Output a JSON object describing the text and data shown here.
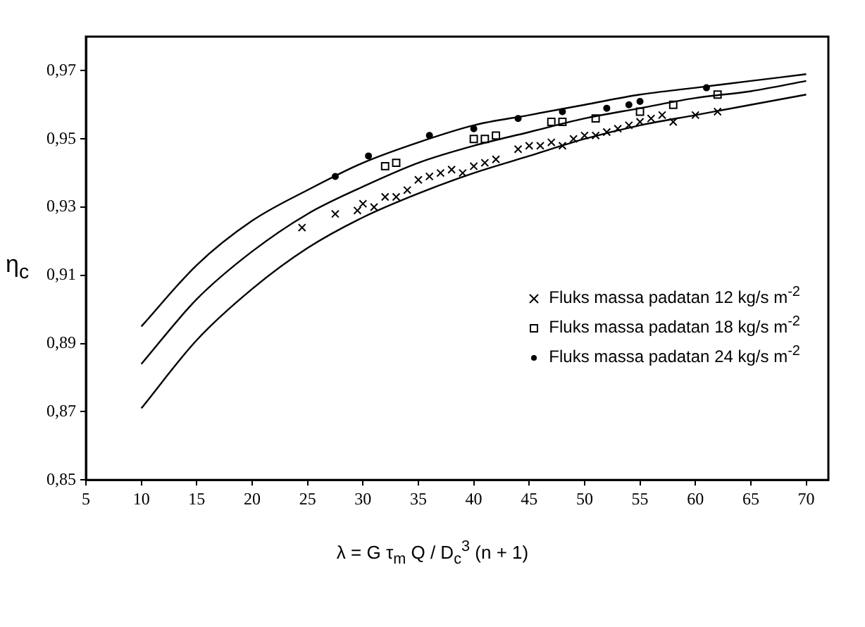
{
  "chart_data": {
    "type": "scatter",
    "xlabel": "λ = G τ$_{m}$ Q / D$_{c}$$^{3}$ (n + 1)",
    "ylabel": "η$_{c}$",
    "xlim": [
      5,
      72
    ],
    "xticks": [
      5,
      10,
      15,
      20,
      25,
      30,
      35,
      40,
      45,
      50,
      55,
      60,
      65,
      70
    ],
    "ylim": [
      0.85,
      0.98
    ],
    "yticks": [
      {
        "value": 0.85,
        "label": "0,85"
      },
      {
        "value": 0.87,
        "label": "0,87"
      },
      {
        "value": 0.89,
        "label": "0,89"
      },
      {
        "value": 0.91,
        "label": "0,91"
      },
      {
        "value": 0.93,
        "label": "0,93"
      },
      {
        "value": 0.95,
        "label": "0,95"
      },
      {
        "value": 0.97,
        "label": "0,97"
      }
    ],
    "grid": false,
    "legend": "right",
    "series": [
      {
        "name": "Fluks massa padatan 12 kg/s m$^{-2}$",
        "color": "#000000",
        "marker": "cross",
        "x": [
          24.5,
          27.5,
          29.5,
          30,
          31,
          32,
          33,
          34,
          35,
          36,
          37,
          38,
          39,
          40,
          41,
          42,
          44,
          45,
          46,
          47,
          48,
          49,
          50,
          51,
          52,
          53,
          54,
          55,
          56,
          57,
          58,
          60,
          62
        ],
        "values": [
          0.924,
          0.928,
          0.929,
          0.931,
          0.93,
          0.933,
          0.933,
          0.935,
          0.938,
          0.939,
          0.94,
          0.941,
          0.94,
          0.942,
          0.943,
          0.944,
          0.947,
          0.948,
          0.948,
          0.949,
          0.948,
          0.95,
          0.951,
          0.951,
          0.952,
          0.953,
          0.954,
          0.955,
          0.956,
          0.957,
          0.955,
          0.957,
          0.958
        ]
      },
      {
        "name": "Fluks massa padatan 18 kg/s m$^{-2}$",
        "color": "#000000",
        "marker": "square",
        "x": [
          32,
          33,
          40,
          41,
          42,
          47,
          48,
          51,
          55,
          58,
          62
        ],
        "values": [
          0.942,
          0.943,
          0.95,
          0.95,
          0.951,
          0.955,
          0.955,
          0.956,
          0.958,
          0.96,
          0.963
        ]
      },
      {
        "name": "Fluks massa padatan 24 kg/s m$^{-2}$",
        "color": "#000000",
        "marker": "circle",
        "x": [
          27.5,
          30.5,
          36,
          40,
          44,
          48,
          52,
          54,
          55,
          61
        ],
        "values": [
          0.939,
          0.945,
          0.951,
          0.953,
          0.956,
          0.958,
          0.959,
          0.96,
          0.961,
          0.965
        ]
      },
      {
        "type": "line",
        "color": "#000000",
        "marker": "none",
        "line_style": "solid",
        "x": [
          10,
          15,
          20,
          25,
          30,
          35,
          40,
          45,
          50,
          55,
          60,
          65,
          70
        ],
        "values": [
          0.895,
          0.913,
          0.926,
          0.935,
          0.943,
          0.949,
          0.954,
          0.957,
          0.96,
          0.963,
          0.965,
          0.967,
          0.969
        ]
      },
      {
        "type": "line",
        "color": "#000000",
        "marker": "none",
        "line_style": "solid",
        "x": [
          10,
          15,
          20,
          25,
          30,
          35,
          40,
          45,
          50,
          55,
          60,
          65,
          70
        ],
        "values": [
          0.884,
          0.903,
          0.917,
          0.928,
          0.936,
          0.943,
          0.948,
          0.952,
          0.956,
          0.959,
          0.962,
          0.964,
          0.967
        ]
      },
      {
        "type": "line",
        "color": "#000000",
        "marker": "none",
        "line_style": "solid",
        "x": [
          10,
          15,
          20,
          25,
          30,
          35,
          40,
          45,
          50,
          55,
          60,
          65,
          70
        ],
        "values": [
          0.871,
          0.891,
          0.906,
          0.918,
          0.927,
          0.934,
          0.94,
          0.945,
          0.95,
          0.954,
          0.957,
          0.96,
          0.963
        ]
      }
    ]
  }
}
